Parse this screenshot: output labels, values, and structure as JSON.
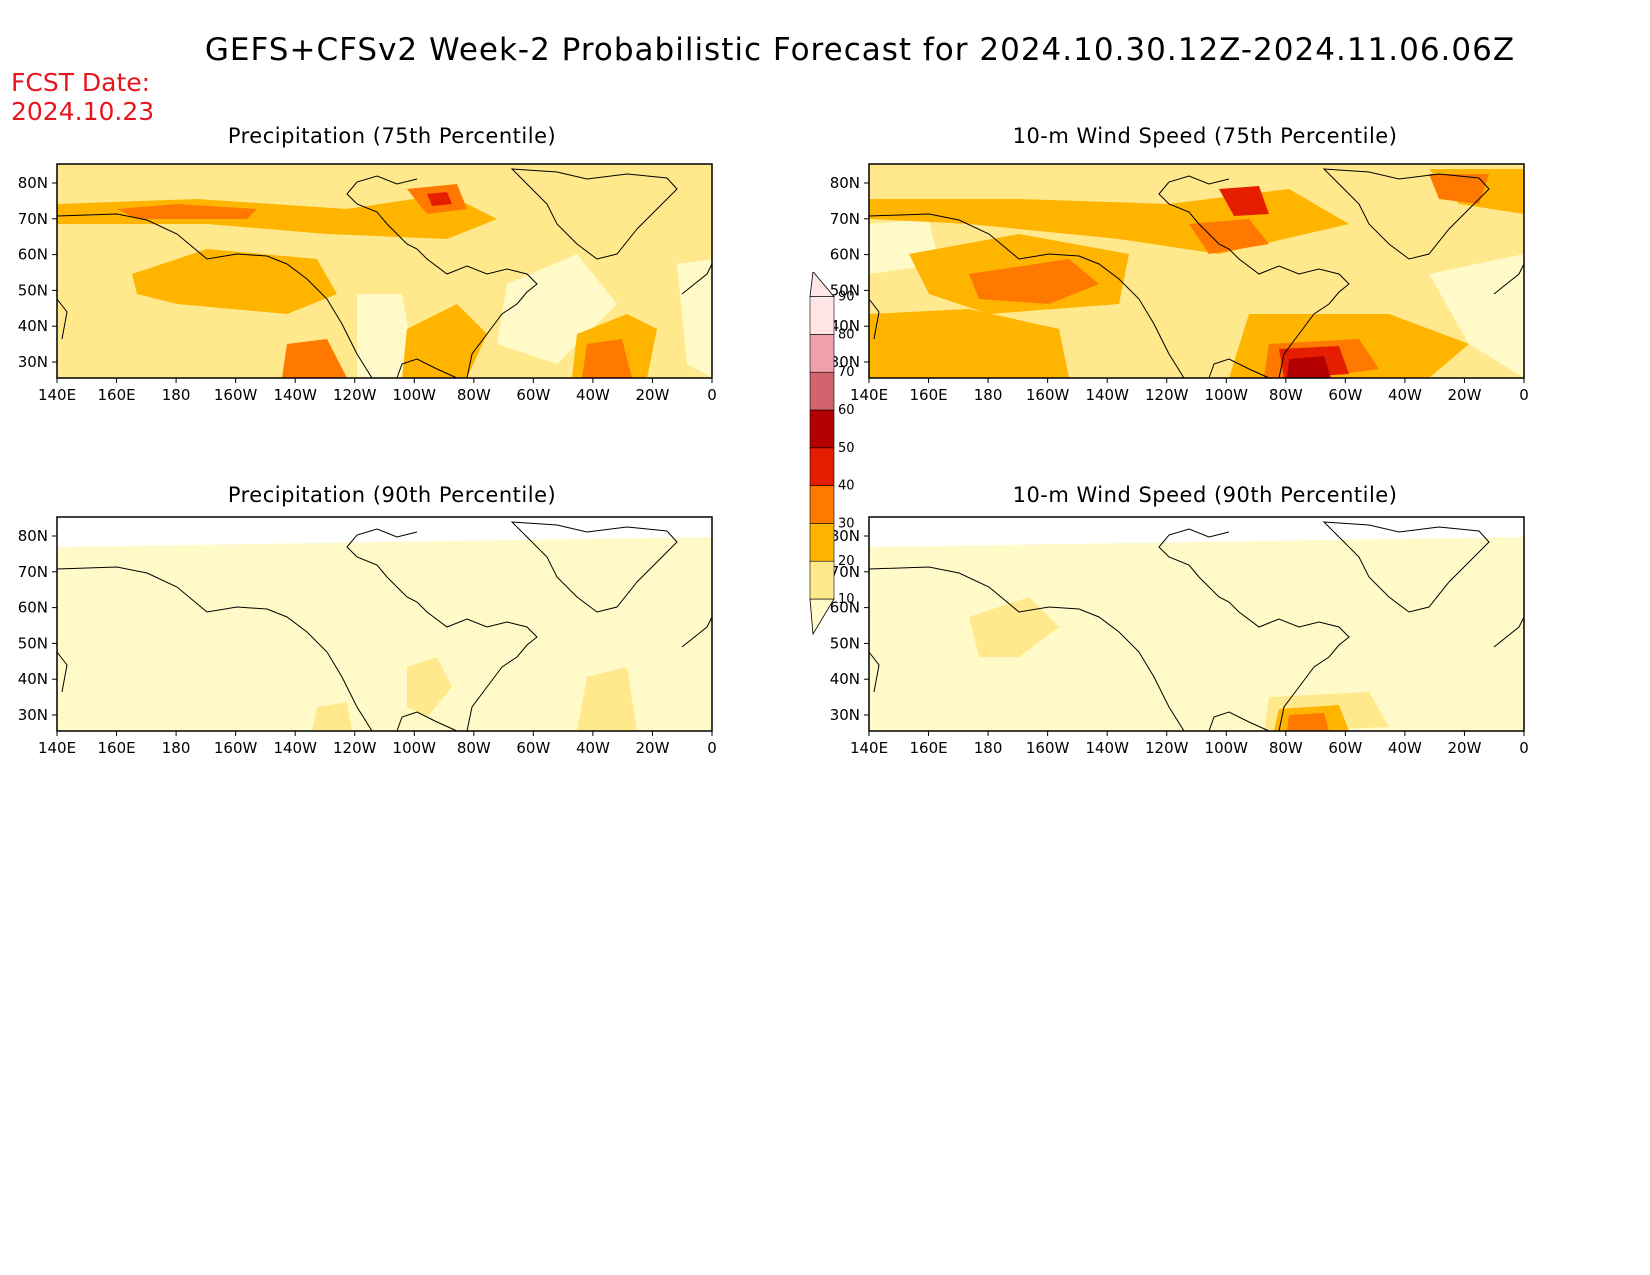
{
  "header": {
    "title": "GEFS+CFSv2 Week-2 Probabilistic Forecast for 2024.10.30.12Z-2024.11.06.06Z",
    "fcst_label": "FCST Date:",
    "fcst_date": "2024.10.23"
  },
  "panels": [
    {
      "title": "Precipitation (75th Percentile)"
    },
    {
      "title": "10-m Wind Speed (75th Percentile)"
    },
    {
      "title": "Precipitation (90th Percentile)"
    },
    {
      "title": "10-m Wind Speed (90th Percentile)"
    }
  ],
  "axes": {
    "lon_labels": [
      "140E",
      "160E",
      "180",
      "160W",
      "140W",
      "120W",
      "100W",
      "80W",
      "60W",
      "40W",
      "20W",
      "0"
    ],
    "lat_labels": [
      "80N",
      "70N",
      "60N",
      "50N",
      "40N",
      "30N"
    ]
  },
  "colorbar": {
    "levels": [
      "10",
      "20",
      "30",
      "40",
      "50",
      "60",
      "70",
      "80",
      "90"
    ],
    "colors": [
      "#fffac8",
      "#ffe98c",
      "#ffb400",
      "#ff7800",
      "#e61e00",
      "#b40000",
      "#d2646e",
      "#f0a0aa",
      "#ffe6e6"
    ]
  },
  "chart_data": {
    "type": "heatmap",
    "x_range": [
      "140E",
      "0"
    ],
    "y_range": [
      "25N",
      "85N"
    ],
    "colors": {
      "c10": "#fffac8",
      "c20": "#ffe98c",
      "c30": "#ffb400",
      "c40": "#ff7800",
      "c50": "#e61e00",
      "c60": "#b40000",
      "c70": "#d2646e"
    }
  }
}
